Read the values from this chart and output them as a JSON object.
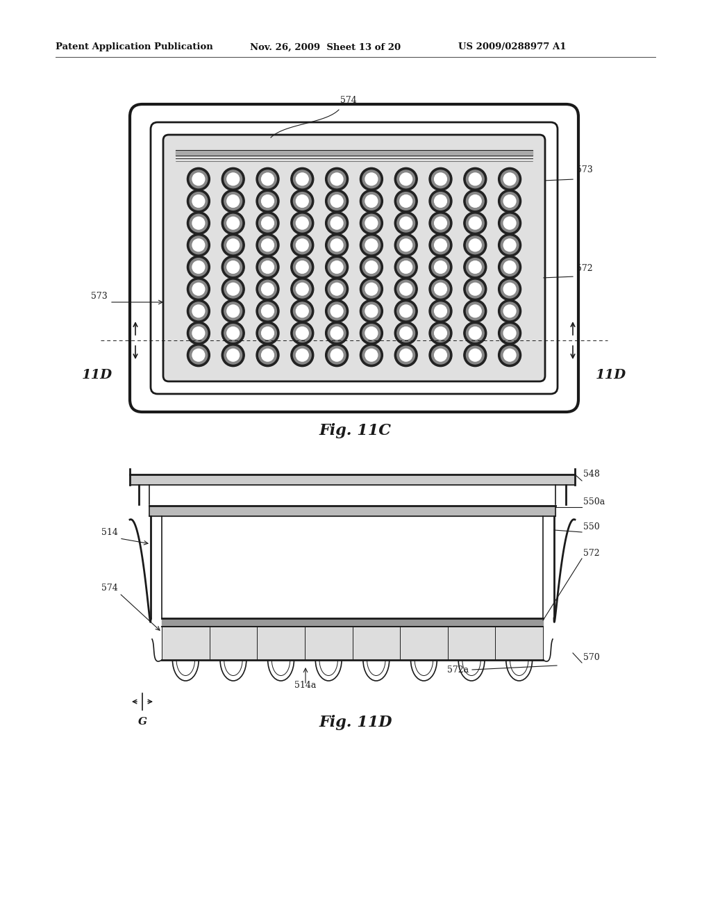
{
  "bg_color": "#ffffff",
  "header_left": "Patent Application Publication",
  "header_mid": "Nov. 26, 2009  Sheet 13 of 20",
  "header_right": "US 2009/0288977 A1",
  "fig11c_label": "Fig. 11C",
  "fig11d_label": "Fig. 11D",
  "line_color": "#1a1a1a",
  "grid_rows": 9,
  "grid_cols": 10
}
